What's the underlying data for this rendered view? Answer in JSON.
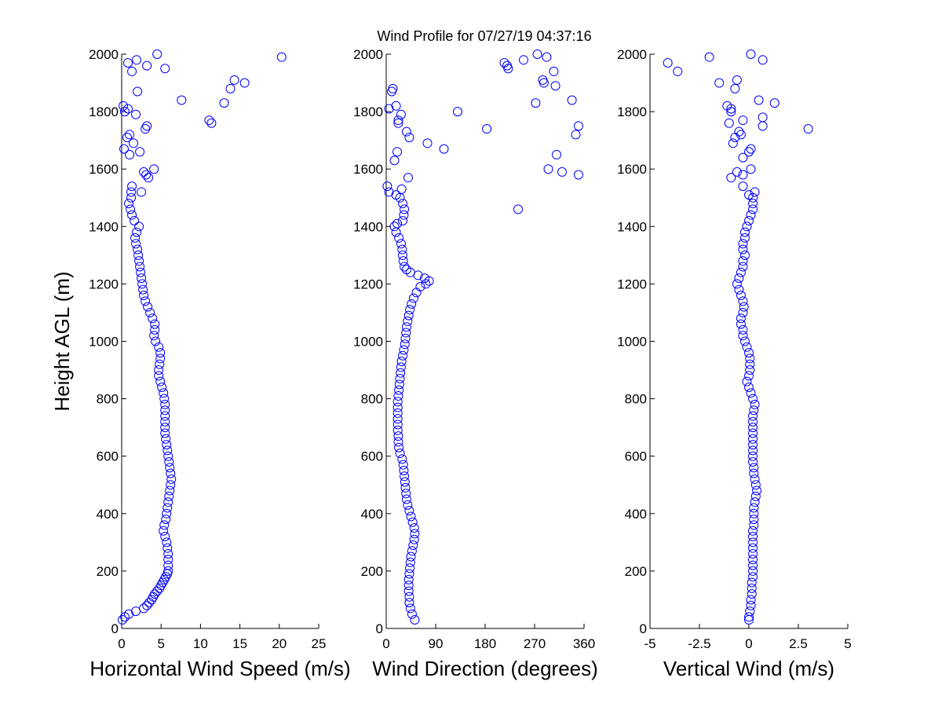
{
  "figure": {
    "title": "Wind Profile for  07/27/19 04:37:16"
  },
  "chart_data": [
    {
      "type": "scatter",
      "xlabel": "Horizontal Wind Speed (m/s)",
      "ylabel": "Height AGL (m)",
      "xlim": [
        0,
        25
      ],
      "ylim": [
        0,
        2000
      ],
      "xticks": [
        "0",
        "5",
        "10",
        "15",
        "20",
        "25"
      ],
      "yticks": [
        "0",
        "200",
        "400",
        "600",
        "800",
        "1000",
        "1200",
        "1400",
        "1600",
        "1800",
        "2000"
      ],
      "marker": "circle-open",
      "color": "#0000ff",
      "points": [
        [
          0.1,
          30
        ],
        [
          0.4,
          40
        ],
        [
          0.9,
          50
        ],
        [
          1.8,
          60
        ],
        [
          2.8,
          70
        ],
        [
          3.2,
          80
        ],
        [
          3.5,
          90
        ],
        [
          3.8,
          100
        ],
        [
          4.0,
          110
        ],
        [
          4.2,
          120
        ],
        [
          4.5,
          130
        ],
        [
          4.8,
          140
        ],
        [
          5.0,
          150
        ],
        [
          5.2,
          160
        ],
        [
          5.4,
          170
        ],
        [
          5.6,
          180
        ],
        [
          5.8,
          190
        ],
        [
          5.9,
          200
        ],
        [
          5.9,
          220
        ],
        [
          5.9,
          240
        ],
        [
          5.9,
          260
        ],
        [
          5.8,
          280
        ],
        [
          5.7,
          300
        ],
        [
          5.5,
          320
        ],
        [
          5.3,
          340
        ],
        [
          5.4,
          360
        ],
        [
          5.6,
          380
        ],
        [
          5.7,
          400
        ],
        [
          5.8,
          420
        ],
        [
          5.9,
          440
        ],
        [
          6.0,
          460
        ],
        [
          6.1,
          480
        ],
        [
          6.2,
          500
        ],
        [
          6.3,
          520
        ],
        [
          6.2,
          540
        ],
        [
          6.1,
          560
        ],
        [
          6.0,
          580
        ],
        [
          5.9,
          600
        ],
        [
          5.8,
          620
        ],
        [
          5.7,
          640
        ],
        [
          5.6,
          660
        ],
        [
          5.5,
          680
        ],
        [
          5.5,
          700
        ],
        [
          5.5,
          720
        ],
        [
          5.5,
          740
        ],
        [
          5.5,
          760
        ],
        [
          5.5,
          780
        ],
        [
          5.4,
          800
        ],
        [
          5.3,
          820
        ],
        [
          5.1,
          840
        ],
        [
          4.9,
          860
        ],
        [
          4.7,
          880
        ],
        [
          4.7,
          900
        ],
        [
          4.8,
          920
        ],
        [
          4.9,
          940
        ],
        [
          4.9,
          960
        ],
        [
          4.7,
          980
        ],
        [
          4.3,
          1000
        ],
        [
          4.1,
          1020
        ],
        [
          4.2,
          1040
        ],
        [
          4.2,
          1060
        ],
        [
          3.9,
          1080
        ],
        [
          3.6,
          1100
        ],
        [
          3.3,
          1120
        ],
        [
          3.0,
          1140
        ],
        [
          2.8,
          1160
        ],
        [
          2.7,
          1180
        ],
        [
          2.6,
          1200
        ],
        [
          2.5,
          1220
        ],
        [
          2.4,
          1240
        ],
        [
          2.3,
          1260
        ],
        [
          2.2,
          1280
        ],
        [
          2.1,
          1300
        ],
        [
          2.0,
          1320
        ],
        [
          1.8,
          1340
        ],
        [
          1.7,
          1360
        ],
        [
          1.9,
          1380
        ],
        [
          2.2,
          1400
        ],
        [
          1.6,
          1420
        ],
        [
          1.3,
          1440
        ],
        [
          1.1,
          1460
        ],
        [
          0.9,
          1480
        ],
        [
          1.2,
          1500
        ],
        [
          1.2,
          1520
        ],
        [
          1.3,
          1540
        ],
        [
          2.5,
          1520
        ],
        [
          2.8,
          1590
        ],
        [
          3.1,
          1580
        ],
        [
          3.4,
          1570
        ],
        [
          4.1,
          1600
        ],
        [
          2.3,
          1660
        ],
        [
          1.5,
          1690
        ],
        [
          1.0,
          1650
        ],
        [
          0.3,
          1670
        ],
        [
          0.7,
          1710
        ],
        [
          1.0,
          1720
        ],
        [
          3.2,
          1750
        ],
        [
          3.0,
          1740
        ],
        [
          1.8,
          1790
        ],
        [
          0.8,
          1810
        ],
        [
          0.4,
          1800
        ],
        [
          0.2,
          1820
        ],
        [
          2.0,
          1870
        ],
        [
          1.3,
          1940
        ],
        [
          1.9,
          1980
        ],
        [
          0.8,
          1970
        ],
        [
          3.2,
          1960
        ],
        [
          4.5,
          2000
        ],
        [
          5.5,
          1950
        ],
        [
          7.6,
          1840
        ],
        [
          11.1,
          1770
        ],
        [
          11.4,
          1760
        ],
        [
          13.0,
          1830
        ],
        [
          13.8,
          1880
        ],
        [
          14.3,
          1910
        ],
        [
          15.6,
          1900
        ],
        [
          20.3,
          1990
        ]
      ]
    },
    {
      "type": "scatter",
      "xlabel": "Wind Direction (degrees)",
      "ylabel": "",
      "xlim": [
        0,
        360
      ],
      "ylim": [
        0,
        2000
      ],
      "xticks": [
        "0",
        "90",
        "180",
        "270",
        "360"
      ],
      "yticks": [
        "0",
        "200",
        "400",
        "600",
        "800",
        "1000",
        "1200",
        "1400",
        "1600",
        "1800",
        "2000"
      ],
      "marker": "circle-open",
      "color": "#0000ff",
      "points": [
        [
          52,
          30
        ],
        [
          47,
          50
        ],
        [
          44,
          70
        ],
        [
          42,
          90
        ],
        [
          42,
          110
        ],
        [
          41,
          130
        ],
        [
          41,
          150
        ],
        [
          41,
          170
        ],
        [
          42,
          190
        ],
        [
          43,
          210
        ],
        [
          44,
          230
        ],
        [
          45,
          250
        ],
        [
          47,
          270
        ],
        [
          49,
          290
        ],
        [
          51,
          310
        ],
        [
          52,
          330
        ],
        [
          51,
          350
        ],
        [
          48,
          370
        ],
        [
          45,
          390
        ],
        [
          42,
          410
        ],
        [
          39,
          430
        ],
        [
          37,
          450
        ],
        [
          36,
          470
        ],
        [
          35,
          490
        ],
        [
          34,
          510
        ],
        [
          33,
          530
        ],
        [
          32,
          550
        ],
        [
          31,
          570
        ],
        [
          29,
          590
        ],
        [
          25,
          610
        ],
        [
          23,
          630
        ],
        [
          22,
          650
        ],
        [
          22,
          670
        ],
        [
          21,
          690
        ],
        [
          21,
          710
        ],
        [
          21,
          730
        ],
        [
          21,
          750
        ],
        [
          21,
          770
        ],
        [
          21,
          790
        ],
        [
          22,
          810
        ],
        [
          23,
          830
        ],
        [
          24,
          850
        ],
        [
          25,
          870
        ],
        [
          26,
          890
        ],
        [
          27,
          910
        ],
        [
          28,
          930
        ],
        [
          30,
          950
        ],
        [
          32,
          970
        ],
        [
          34,
          990
        ],
        [
          35,
          1010
        ],
        [
          36,
          1030
        ],
        [
          37,
          1050
        ],
        [
          39,
          1070
        ],
        [
          41,
          1090
        ],
        [
          43,
          1110
        ],
        [
          46,
          1130
        ],
        [
          50,
          1150
        ],
        [
          55,
          1170
        ],
        [
          62,
          1190
        ],
        [
          72,
          1200
        ],
        [
          78,
          1210
        ],
        [
          70,
          1220
        ],
        [
          58,
          1230
        ],
        [
          44,
          1240
        ],
        [
          37,
          1250
        ],
        [
          33,
          1260
        ],
        [
          31,
          1280
        ],
        [
          30,
          1300
        ],
        [
          29,
          1320
        ],
        [
          27,
          1340
        ],
        [
          23,
          1360
        ],
        [
          18,
          1380
        ],
        [
          15,
          1400
        ],
        [
          20,
          1410
        ],
        [
          30,
          1420
        ],
        [
          32,
          1440
        ],
        [
          33,
          1460
        ],
        [
          30,
          1480
        ],
        [
          25,
          1500
        ],
        [
          18,
          1510
        ],
        [
          5,
          1520
        ],
        [
          2,
          1540
        ],
        [
          28,
          1530
        ],
        [
          40,
          1570
        ],
        [
          15,
          1630
        ],
        [
          20,
          1660
        ],
        [
          22,
          1760
        ],
        [
          22,
          1770
        ],
        [
          18,
          1820
        ],
        [
          27,
          1790
        ],
        [
          5,
          1810
        ],
        [
          10,
          1870
        ],
        [
          12,
          1880
        ],
        [
          37,
          1730
        ],
        [
          42,
          1710
        ],
        [
          75,
          1690
        ],
        [
          105,
          1670
        ],
        [
          130,
          1800
        ],
        [
          183,
          1740
        ],
        [
          215,
          1970
        ],
        [
          220,
          1960
        ],
        [
          222,
          1950
        ],
        [
          240,
          1460
        ],
        [
          250,
          1980
        ],
        [
          272,
          1830
        ],
        [
          275,
          2000
        ],
        [
          285,
          1910
        ],
        [
          287,
          1900
        ],
        [
          292,
          1990
        ],
        [
          295,
          1600
        ],
        [
          305,
          1940
        ],
        [
          308,
          1890
        ],
        [
          310,
          1650
        ],
        [
          320,
          1590
        ],
        [
          338,
          1840
        ],
        [
          345,
          1720
        ],
        [
          350,
          1750
        ],
        [
          350,
          1580
        ]
      ]
    },
    {
      "type": "scatter",
      "xlabel": "Vertical Wind (m/s)",
      "ylabel": "",
      "xlim": [
        -5,
        5
      ],
      "ylim": [
        0,
        2000
      ],
      "xticks": [
        "-5",
        "-2.5",
        "0",
        "2.5",
        "5"
      ],
      "yticks": [
        "0",
        "200",
        "400",
        "600",
        "800",
        "1000",
        "1200",
        "1400",
        "1600",
        "1800",
        "2000"
      ],
      "marker": "circle-open",
      "color": "#0000ff",
      "points": [
        [
          0.0,
          30
        ],
        [
          0.0,
          40
        ],
        [
          0.05,
          60
        ],
        [
          0.1,
          80
        ],
        [
          0.1,
          100
        ],
        [
          0.15,
          120
        ],
        [
          0.15,
          140
        ],
        [
          0.15,
          160
        ],
        [
          0.2,
          180
        ],
        [
          0.2,
          200
        ],
        [
          0.2,
          220
        ],
        [
          0.2,
          240
        ],
        [
          0.2,
          260
        ],
        [
          0.2,
          280
        ],
        [
          0.2,
          300
        ],
        [
          0.2,
          320
        ],
        [
          0.2,
          340
        ],
        [
          0.25,
          360
        ],
        [
          0.25,
          380
        ],
        [
          0.25,
          400
        ],
        [
          0.25,
          420
        ],
        [
          0.3,
          440
        ],
        [
          0.35,
          460
        ],
        [
          0.4,
          480
        ],
        [
          0.35,
          500
        ],
        [
          0.3,
          520
        ],
        [
          0.25,
          540
        ],
        [
          0.25,
          560
        ],
        [
          0.2,
          580
        ],
        [
          0.2,
          600
        ],
        [
          0.2,
          620
        ],
        [
          0.2,
          640
        ],
        [
          0.2,
          660
        ],
        [
          0.2,
          680
        ],
        [
          0.2,
          700
        ],
        [
          0.2,
          720
        ],
        [
          0.2,
          740
        ],
        [
          0.25,
          760
        ],
        [
          0.3,
          780
        ],
        [
          0.2,
          800
        ],
        [
          0.1,
          820
        ],
        [
          0.0,
          840
        ],
        [
          -0.1,
          860
        ],
        [
          0.0,
          880
        ],
        [
          0.05,
          900
        ],
        [
          0.05,
          920
        ],
        [
          0.05,
          940
        ],
        [
          0.0,
          960
        ],
        [
          -0.1,
          980
        ],
        [
          -0.2,
          1000
        ],
        [
          -0.3,
          1020
        ],
        [
          -0.3,
          1040
        ],
        [
          -0.4,
          1060
        ],
        [
          -0.4,
          1080
        ],
        [
          -0.3,
          1100
        ],
        [
          -0.25,
          1120
        ],
        [
          -0.3,
          1140
        ],
        [
          -0.4,
          1160
        ],
        [
          -0.5,
          1180
        ],
        [
          -0.6,
          1200
        ],
        [
          -0.5,
          1220
        ],
        [
          -0.4,
          1240
        ],
        [
          -0.3,
          1260
        ],
        [
          -0.3,
          1280
        ],
        [
          -0.2,
          1300
        ],
        [
          -0.3,
          1320
        ],
        [
          -0.3,
          1340
        ],
        [
          -0.2,
          1360
        ],
        [
          -0.2,
          1380
        ],
        [
          -0.1,
          1400
        ],
        [
          0.0,
          1420
        ],
        [
          0.1,
          1440
        ],
        [
          0.2,
          1460
        ],
        [
          0.2,
          1480
        ],
        [
          0.2,
          1500
        ],
        [
          0.3,
          1520
        ],
        [
          -0.3,
          1540
        ],
        [
          0.0,
          1510
        ],
        [
          -0.6,
          1590
        ],
        [
          -0.9,
          1570
        ],
        [
          -0.3,
          1580
        ],
        [
          0.1,
          1600
        ],
        [
          -0.3,
          1640
        ],
        [
          0.0,
          1660
        ],
        [
          0.1,
          1670
        ],
        [
          -0.8,
          1690
        ],
        [
          -0.7,
          1710
        ],
        [
          -0.5,
          1730
        ],
        [
          -0.4,
          1720
        ],
        [
          -1.0,
          1760
        ],
        [
          -0.3,
          1770
        ],
        [
          -0.9,
          1800
        ],
        [
          -1.1,
          1820
        ],
        [
          -0.9,
          1810
        ],
        [
          0.5,
          1840
        ],
        [
          0.7,
          1780
        ],
        [
          0.7,
          1750
        ],
        [
          1.3,
          1830
        ],
        [
          3.0,
          1740
        ],
        [
          -1.5,
          1900
        ],
        [
          -0.7,
          1880
        ],
        [
          -0.6,
          1910
        ],
        [
          0.7,
          1980
        ],
        [
          0.1,
          2000
        ],
        [
          -2.0,
          1990
        ],
        [
          -3.6,
          1940
        ],
        [
          -4.1,
          1970
        ]
      ]
    }
  ]
}
